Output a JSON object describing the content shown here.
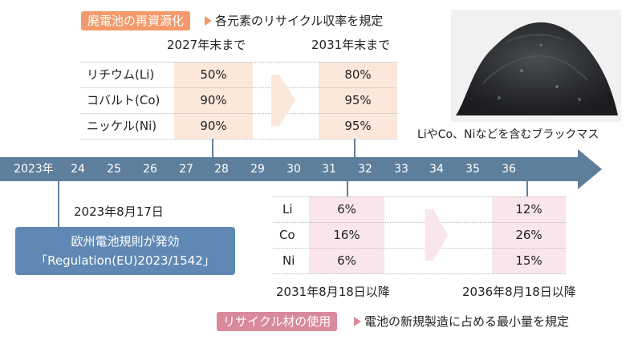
{
  "top": {
    "tag": "廃電池の再資源化",
    "note": "各元素のリサイクル収率を規定",
    "col_headers": [
      "2027年末まで",
      "2031年末まで"
    ],
    "rows": [
      {
        "label": "リチウム(Li)",
        "values": [
          "50%",
          "80%"
        ]
      },
      {
        "label": "コバルト(Co)",
        "values": [
          "90%",
          "95%"
        ]
      },
      {
        "label": "ニッケル(Ni)",
        "values": [
          "90%",
          "95%"
        ]
      }
    ]
  },
  "timeline": {
    "ticks": [
      "2023年",
      "24",
      "25",
      "26",
      "27",
      "28",
      "29",
      "30",
      "31",
      "32",
      "33",
      "34",
      "35",
      "36"
    ]
  },
  "event": {
    "date": "2023年8月17日",
    "line1": "欧州電池規則が発効",
    "line2": "「Regulation(EU)2023/1542」"
  },
  "bottom": {
    "tag": "リサイクル材の使用",
    "note": "電池の新規製造に占める最小量を規定",
    "rows": [
      {
        "label": "Li",
        "values": [
          "6%",
          "12%"
        ]
      },
      {
        "label": "Co",
        "values": [
          "16%",
          "26%"
        ]
      },
      {
        "label": "Ni",
        "values": [
          "6%",
          "15%"
        ]
      }
    ],
    "col_footers": [
      "2031年8月18日以降",
      "2036年8月18日以降"
    ]
  },
  "photo": {
    "caption": "LiやCo、Niなどを含むブラックマス"
  },
  "colors": {
    "timeline": "#5e7f9c",
    "top_accent": "#f29a6a",
    "top_cell": "#fce8db",
    "bottom_accent": "#d98a9a",
    "bottom_cell": "#f8e6ea",
    "event_box": "#5f89b4"
  }
}
